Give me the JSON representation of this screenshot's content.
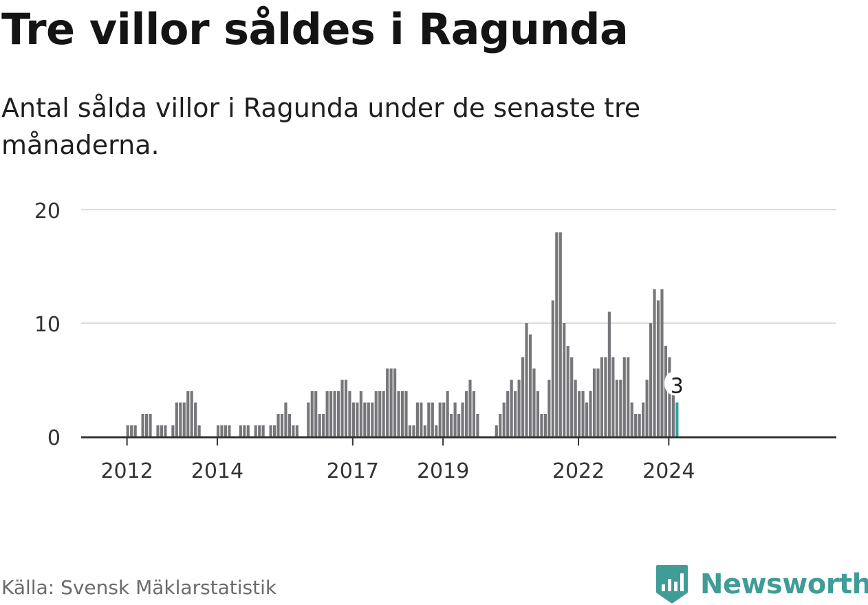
{
  "title": "Tre villor såldes i Ragunda",
  "subtitle": "Antal sålda villor i Ragunda under de senaste tre månaderna.",
  "source": "Källa: Svensk Mäklarstatistik",
  "brand": "Newsworthy",
  "colors": {
    "bar": "#77767b",
    "highlight": "#2ba39a",
    "grid": "#dddddd",
    "axis": "#333333",
    "brand": "#3f9c96"
  },
  "chart_data": {
    "type": "bar",
    "title": "Tre villor såldes i Ragunda",
    "xlabel": "",
    "ylabel": "",
    "ylim": [
      0,
      20
    ],
    "yticks": [
      "0",
      "10",
      "20"
    ],
    "xticks": [
      "2012",
      "2014",
      "2017",
      "2019",
      "2022",
      "2024"
    ],
    "grid": true,
    "start": "2011-01",
    "values": [
      0,
      0,
      0,
      0,
      0,
      0,
      0,
      0,
      0,
      0,
      0,
      0,
      1,
      1,
      1,
      0,
      2,
      2,
      2,
      0,
      1,
      1,
      1,
      0,
      1,
      3,
      3,
      3,
      4,
      4,
      3,
      1,
      0,
      0,
      0,
      0,
      1,
      1,
      1,
      1,
      0,
      0,
      1,
      1,
      1,
      0,
      1,
      1,
      1,
      0,
      1,
      1,
      2,
      2,
      3,
      2,
      1,
      1,
      0,
      0,
      3,
      4,
      4,
      2,
      2,
      4,
      4,
      4,
      4,
      5,
      5,
      4,
      3,
      3,
      4,
      3,
      3,
      3,
      4,
      4,
      4,
      6,
      6,
      6,
      4,
      4,
      4,
      1,
      1,
      3,
      3,
      1,
      3,
      3,
      1,
      3,
      3,
      4,
      2,
      3,
      2,
      3,
      4,
      5,
      4,
      2,
      0,
      0,
      0,
      0,
      1,
      2,
      3,
      4,
      5,
      4,
      5,
      7,
      10,
      9,
      6,
      4,
      2,
      2,
      5,
      12,
      18,
      18,
      10,
      8,
      7,
      5,
      4,
      4,
      3,
      4,
      6,
      6,
      7,
      7,
      11,
      7,
      5,
      5,
      7,
      7,
      3,
      2,
      2,
      3,
      5,
      10,
      13,
      12,
      13,
      8,
      7,
      4,
      3
    ],
    "highlight_label": "3"
  }
}
